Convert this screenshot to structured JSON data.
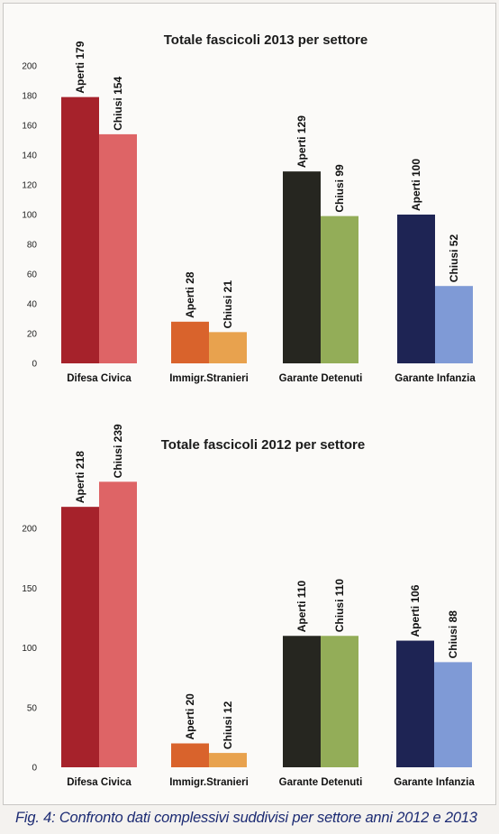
{
  "caption": "Fig. 4: Confronto dati complessivi suddivisi per settore  anni 2012 e 2013",
  "colors": {
    "defesa_aperti": "#a6222b",
    "defesa_chiusi": "#de6466",
    "immigr_aperti": "#d9632c",
    "immigr_chiusi": "#e8a24e",
    "detenuti_aperti": "#262620",
    "detenuti_chiusi": "#93ad58",
    "infanzia_aperti": "#1e2454",
    "infanzia_chiusi": "#7f9ad6"
  },
  "chart_data": [
    {
      "type": "bar",
      "title": "Totale fascicoli 2013 per settore",
      "categories": [
        "Difesa Civica",
        "Immigr.Stranieri",
        "Garante Detenuti",
        "Garante Infanzia"
      ],
      "series": [
        {
          "name": "Aperti",
          "values": [
            179,
            28,
            129,
            100
          ]
        },
        {
          "name": "Chiusi",
          "values": [
            154,
            21,
            99,
            52
          ]
        }
      ],
      "data_labels": [
        [
          "Aperti 179",
          "Chiusi 154"
        ],
        [
          "Aperti 28",
          "Chiusi 21"
        ],
        [
          "Aperti 129",
          "Chiusi 99"
        ],
        [
          "Aperti 100",
          "Chiusi 52"
        ]
      ],
      "ylim": [
        0,
        200
      ],
      "yticks": [
        0,
        20,
        40,
        60,
        80,
        100,
        120,
        140,
        160,
        180,
        200
      ],
      "xlabel": "",
      "ylabel": "",
      "grid": false,
      "legend": "none"
    },
    {
      "type": "bar",
      "title": "Totale fascicoli 2012 per settore",
      "categories": [
        "Difesa Civica",
        "Immigr.Stranieri",
        "Garante Detenuti",
        "Garante Infanzia"
      ],
      "series": [
        {
          "name": "Aperti",
          "values": [
            218,
            20,
            110,
            106
          ]
        },
        {
          "name": "Chiusi",
          "values": [
            239,
            12,
            110,
            88
          ]
        }
      ],
      "data_labels": [
        [
          "Aperti 218",
          "Chiusi 239"
        ],
        [
          "Aperti 20",
          "Chiusi 12"
        ],
        [
          "Aperti 110",
          "Chiusi 110"
        ],
        [
          "Aperti 106",
          "Chiusi 88"
        ]
      ],
      "ylim": [
        0,
        240
      ],
      "yticks": [
        0,
        50,
        100,
        150,
        200
      ],
      "xlabel": "",
      "ylabel": "",
      "grid": false,
      "legend": "none"
    }
  ]
}
